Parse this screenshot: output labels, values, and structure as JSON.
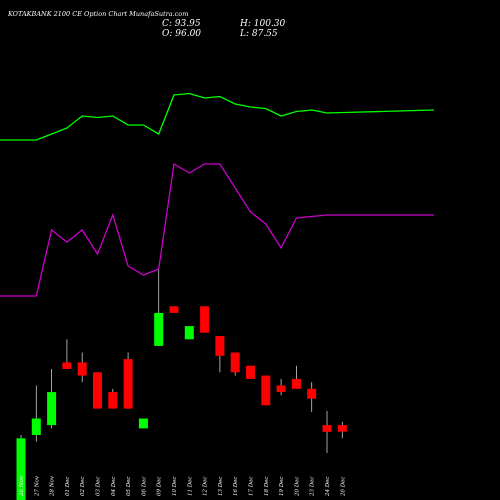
{
  "header": {
    "title": "KOTAKBANK 2100  CE Option  Chart MunafaSutra.com",
    "close_text": "C: 93.95",
    "open_text": "O: 96.00",
    "high_text": "H: 100.30",
    "low_text": "L: 87.55"
  },
  "chart_data": {
    "type": "candlestick",
    "title": "KOTAKBANK 2100  CE Option  Chart MunafaSutra.com",
    "summary": {
      "close": 93.95,
      "open": 96.0,
      "high": 100.3,
      "low": 87.55
    },
    "categories": [
      "26 Nov",
      "27 Nov",
      "28 Nov",
      "01 Dec",
      "02 Dec",
      "03 Dec",
      "04 Dec",
      "05 Dec",
      "06 Dec",
      "09 Dec",
      "10 Dec",
      "11 Dec",
      "12 Dec",
      "13 Dec",
      "16 Dec",
      "17 Dec",
      "18 Dec",
      "19 Dec",
      "20 Dec",
      "23 Dec",
      "24 Dec",
      "26 Dec"
    ],
    "candles": [
      {
        "date": "26 Nov",
        "open": 72,
        "close": 92,
        "high": 93,
        "low": 72
      },
      {
        "date": "27 Nov",
        "open": 93,
        "close": 98,
        "high": 108,
        "low": 91
      },
      {
        "date": "28 Nov",
        "open": 96,
        "close": 106,
        "high": 113,
        "low": 95
      },
      {
        "date": "01 Dec",
        "open": 115,
        "close": 113,
        "high": 122,
        "low": 113
      },
      {
        "date": "02 Dec",
        "open": 115,
        "close": 111,
        "high": 118,
        "low": 109
      },
      {
        "date": "03 Dec",
        "open": 112,
        "close": 101,
        "high": 112,
        "low": 101
      },
      {
        "date": "04 Dec",
        "open": 106,
        "close": 101,
        "high": 107,
        "low": 101
      },
      {
        "date": "05 Dec",
        "open": 116,
        "close": 101,
        "high": 118,
        "low": 101
      },
      {
        "date": "06 Dec",
        "open": 95,
        "close": 98,
        "high": 98,
        "low": 95
      },
      {
        "date": "09 Dec",
        "open": 120,
        "close": 130,
        "high": 143,
        "low": 120
      },
      {
        "date": "10 Dec",
        "open": 132,
        "close": 130,
        "high": 132,
        "low": 130
      },
      {
        "date": "11 Dec",
        "open": 122,
        "close": 126,
        "high": 126,
        "low": 122
      },
      {
        "date": "12 Dec",
        "open": 132,
        "close": 124,
        "high": 132,
        "low": 124
      },
      {
        "date": "13 Dec",
        "open": 123,
        "close": 117,
        "high": 123,
        "low": 112
      },
      {
        "date": "16 Dec",
        "open": 118,
        "close": 112,
        "high": 118,
        "low": 111
      },
      {
        "date": "17 Dec",
        "open": 114,
        "close": 110,
        "high": 114,
        "low": 110
      },
      {
        "date": "18 Dec",
        "open": 111,
        "close": 102,
        "high": 111,
        "low": 102
      },
      {
        "date": "19 Dec",
        "open": 108,
        "close": 106,
        "high": 110,
        "low": 105
      },
      {
        "date": "20 Dec",
        "open": 110,
        "close": 107,
        "high": 114,
        "low": 107
      },
      {
        "date": "23 Dec",
        "open": 107,
        "close": 104,
        "high": 109,
        "low": 100
      },
      {
        "date": "24 Dec",
        "open": 96,
        "close": 93.95,
        "high": 100.3,
        "low": 87.55
      },
      {
        "date": "26 Dec",
        "open": 96,
        "close": 94,
        "high": 97,
        "low": 92
      }
    ],
    "series": [
      {
        "color": "#00ff00",
        "values": [
          20,
          20,
          22,
          24,
          28,
          27.5,
          28,
          25,
          25,
          22,
          35,
          35.5,
          34,
          34.5,
          32,
          31,
          30.5,
          28,
          29.5,
          30,
          29,
          30
        ]
      },
      {
        "color": "#cc00cc",
        "values": [
          -32,
          -32,
          -10,
          -14,
          -10,
          -18,
          -5,
          -22,
          -25,
          -23,
          12,
          9,
          12,
          12,
          4,
          -4,
          -8,
          -16,
          -6,
          -5.5,
          -5,
          -5
        ]
      }
    ],
    "colors": {
      "up": "#00ff00",
      "down": "#ff0000",
      "background": "#000000"
    },
    "grid": false
  }
}
